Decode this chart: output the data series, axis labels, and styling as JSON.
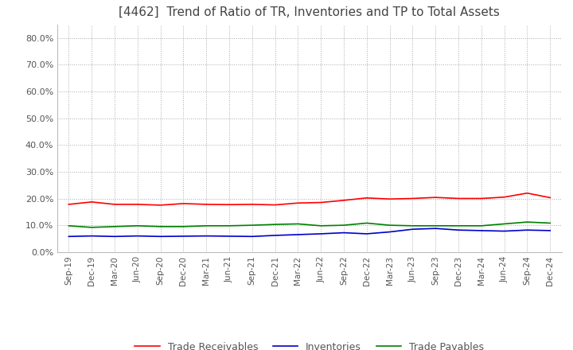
{
  "title": "[4462]  Trend of Ratio of TR, Inventories and TP to Total Assets",
  "title_fontsize": 11,
  "title_color": "#444444",
  "background_color": "#ffffff",
  "plot_background_color": "#ffffff",
  "grid_color": "#aaaaaa",
  "ylim": [
    0.0,
    0.85
  ],
  "yticks": [
    0.0,
    0.1,
    0.2,
    0.3,
    0.4,
    0.5,
    0.6,
    0.7,
    0.8
  ],
  "ytick_labels": [
    "0.0%",
    "10.0%",
    "20.0%",
    "30.0%",
    "40.0%",
    "50.0%",
    "60.0%",
    "70.0%",
    "80.0%"
  ],
  "x_labels": [
    "Sep-19",
    "Dec-19",
    "Mar-20",
    "Jun-20",
    "Sep-20",
    "Dec-20",
    "Mar-21",
    "Jun-21",
    "Sep-21",
    "Dec-21",
    "Mar-22",
    "Jun-22",
    "Sep-22",
    "Dec-22",
    "Mar-23",
    "Jun-23",
    "Sep-23",
    "Dec-23",
    "Mar-24",
    "Jun-24",
    "Sep-24",
    "Dec-24"
  ],
  "trade_receivables": [
    0.178,
    0.187,
    0.178,
    0.178,
    0.175,
    0.181,
    0.178,
    0.177,
    0.178,
    0.176,
    0.183,
    0.185,
    0.193,
    0.202,
    0.198,
    0.2,
    0.204,
    0.2,
    0.2,
    0.205,
    0.22,
    0.203
  ],
  "inventories": [
    0.058,
    0.06,
    0.058,
    0.06,
    0.058,
    0.059,
    0.06,
    0.059,
    0.058,
    0.062,
    0.065,
    0.068,
    0.072,
    0.068,
    0.075,
    0.085,
    0.088,
    0.082,
    0.08,
    0.078,
    0.082,
    0.08
  ],
  "trade_payables": [
    0.098,
    0.092,
    0.095,
    0.098,
    0.095,
    0.095,
    0.098,
    0.098,
    0.1,
    0.103,
    0.105,
    0.098,
    0.1,
    0.108,
    0.1,
    0.098,
    0.098,
    0.098,
    0.098,
    0.105,
    0.112,
    0.108
  ],
  "tr_color": "#ff0000",
  "inv_color": "#0000cc",
  "tp_color": "#008000",
  "line_width": 1.2,
  "legend_tr": "Trade Receivables",
  "legend_inv": "Inventories",
  "legend_tp": "Trade Payables"
}
